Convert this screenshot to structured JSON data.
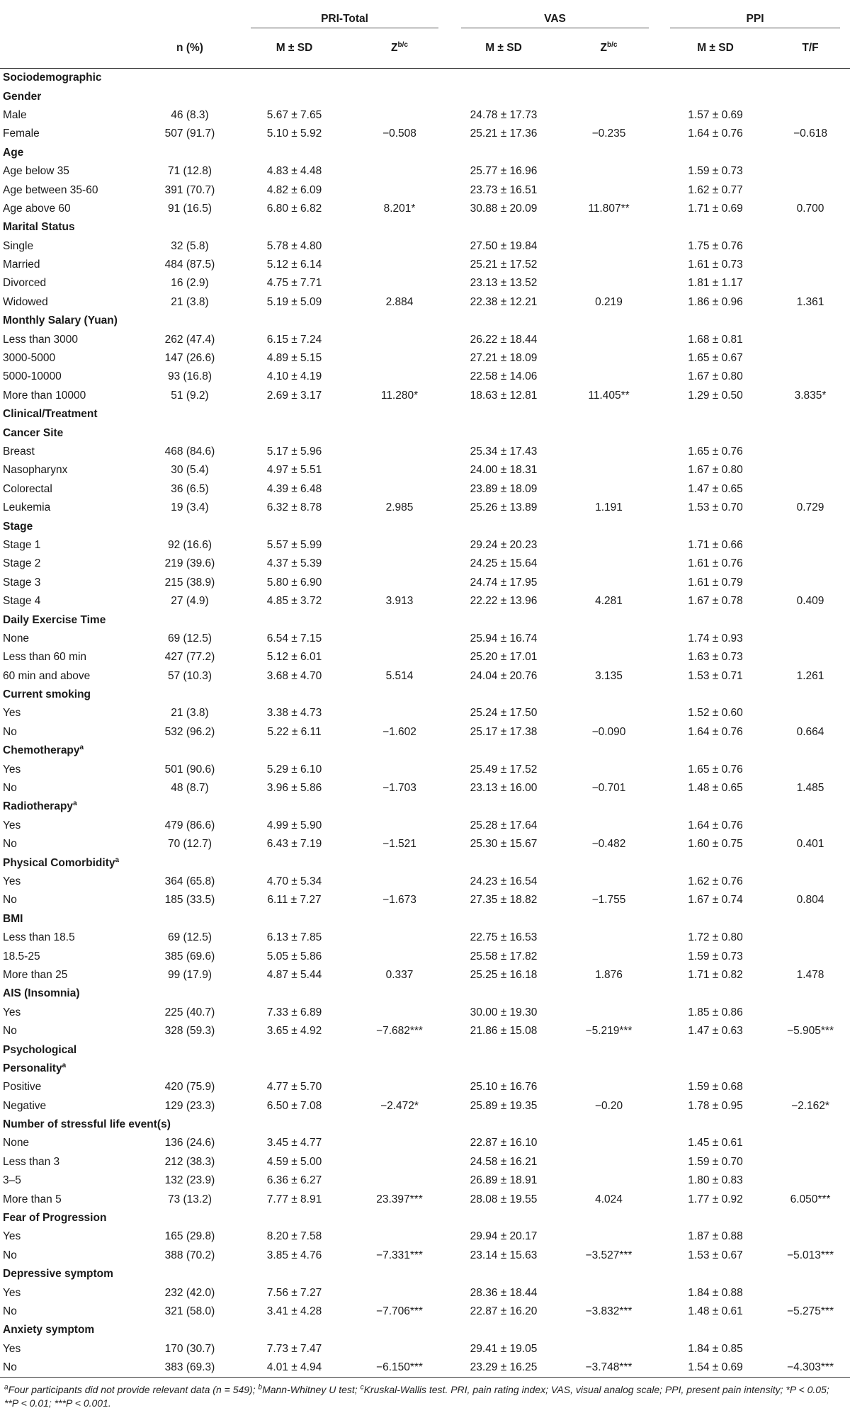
{
  "headers": {
    "groups": [
      "PRI-Total",
      "VAS",
      "PPI"
    ],
    "n_label": "n (%)",
    "ms_label": "M ± SD",
    "z_label": "Z",
    "z_sup": "b/c",
    "tf_label": "T/F"
  },
  "rows": [
    {
      "type": "section",
      "label": "Sociodemographic"
    },
    {
      "type": "group",
      "label": "Gender"
    },
    {
      "type": "data",
      "label": "Male",
      "n": "46 (8.3)",
      "pri": "5.67 ± 7.65",
      "pri_z": "",
      "vas": "24.78 ± 17.73",
      "vas_z": "",
      "ppi": "1.57 ± 0.69",
      "ppi_tf": ""
    },
    {
      "type": "data",
      "label": "Female",
      "n": "507 (91.7)",
      "pri": "5.10 ± 5.92",
      "pri_z": "−0.508",
      "vas": "25.21 ± 17.36",
      "vas_z": "−0.235",
      "ppi": "1.64 ± 0.76",
      "ppi_tf": "−0.618"
    },
    {
      "type": "group",
      "label": "Age"
    },
    {
      "type": "data",
      "label": "Age below 35",
      "n": "71 (12.8)",
      "pri": "4.83 ± 4.48",
      "pri_z": "",
      "vas": "25.77 ± 16.96",
      "vas_z": "",
      "ppi": "1.59 ± 0.73",
      "ppi_tf": ""
    },
    {
      "type": "data",
      "label": "Age between 35-60",
      "n": "391 (70.7)",
      "pri": "4.82 ± 6.09",
      "pri_z": "",
      "vas": "23.73 ± 16.51",
      "vas_z": "",
      "ppi": "1.62 ± 0.77",
      "ppi_tf": ""
    },
    {
      "type": "data",
      "label": "Age above 60",
      "n": "91 (16.5)",
      "pri": "6.80 ± 6.82",
      "pri_z": "8.201*",
      "vas": "30.88 ± 20.09",
      "vas_z": "11.807**",
      "ppi": "1.71 ± 0.69",
      "ppi_tf": "0.700"
    },
    {
      "type": "group",
      "label": "Marital Status"
    },
    {
      "type": "data",
      "label": "Single",
      "n": "32 (5.8)",
      "pri": "5.78 ± 4.80",
      "pri_z": "",
      "vas": "27.50 ± 19.84",
      "vas_z": "",
      "ppi": "1.75 ± 0.76",
      "ppi_tf": ""
    },
    {
      "type": "data",
      "label": "Married",
      "n": "484 (87.5)",
      "pri": "5.12 ± 6.14",
      "pri_z": "",
      "vas": "25.21 ± 17.52",
      "vas_z": "",
      "ppi": "1.61 ± 0.73",
      "ppi_tf": ""
    },
    {
      "type": "data",
      "label": "Divorced",
      "n": "16 (2.9)",
      "pri": "4.75 ± 7.71",
      "pri_z": "",
      "vas": "23.13 ± 13.52",
      "vas_z": "",
      "ppi": "1.81 ± 1.17",
      "ppi_tf": ""
    },
    {
      "type": "data",
      "label": "Widowed",
      "n": "21 (3.8)",
      "pri": "5.19 ± 5.09",
      "pri_z": "2.884",
      "vas": "22.38 ± 12.21",
      "vas_z": "0.219",
      "ppi": "1.86 ± 0.96",
      "ppi_tf": "1.361"
    },
    {
      "type": "group",
      "label": "Monthly Salary (Yuan)"
    },
    {
      "type": "data",
      "label": "Less than 3000",
      "n": "262 (47.4)",
      "pri": "6.15 ± 7.24",
      "pri_z": "",
      "vas": "26.22 ± 18.44",
      "vas_z": "",
      "ppi": "1.68 ± 0.81",
      "ppi_tf": ""
    },
    {
      "type": "data",
      "label": "3000-5000",
      "n": "147 (26.6)",
      "pri": "4.89 ± 5.15",
      "pri_z": "",
      "vas": "27.21 ± 18.09",
      "vas_z": "",
      "ppi": "1.65 ± 0.67",
      "ppi_tf": ""
    },
    {
      "type": "data",
      "label": "5000-10000",
      "n": "93 (16.8)",
      "pri": "4.10 ± 4.19",
      "pri_z": "",
      "vas": "22.58 ± 14.06",
      "vas_z": "",
      "ppi": "1.67 ± 0.80",
      "ppi_tf": ""
    },
    {
      "type": "data",
      "label": "More than 10000",
      "n": "51 (9.2)",
      "pri": "2.69 ± 3.17",
      "pri_z": "11.280*",
      "vas": "18.63 ± 12.81",
      "vas_z": "11.405**",
      "ppi": "1.29 ± 0.50",
      "ppi_tf": "3.835*"
    },
    {
      "type": "section",
      "label": "Clinical/Treatment"
    },
    {
      "type": "group",
      "label": "Cancer Site"
    },
    {
      "type": "data",
      "label": "Breast",
      "n": "468 (84.6)",
      "pri": "5.17 ± 5.96",
      "pri_z": "",
      "vas": "25.34 ± 17.43",
      "vas_z": "",
      "ppi": "1.65 ± 0.76",
      "ppi_tf": ""
    },
    {
      "type": "data",
      "label": "Nasopharynx",
      "n": "30 (5.4)",
      "pri": "4.97 ± 5.51",
      "pri_z": "",
      "vas": "24.00 ± 18.31",
      "vas_z": "",
      "ppi": "1.67 ± 0.80",
      "ppi_tf": ""
    },
    {
      "type": "data",
      "label": "Colorectal",
      "n": "36 (6.5)",
      "pri": "4.39 ± 6.48",
      "pri_z": "",
      "vas": "23.89 ± 18.09",
      "vas_z": "",
      "ppi": "1.47 ± 0.65",
      "ppi_tf": ""
    },
    {
      "type": "data",
      "label": "Leukemia",
      "n": "19 (3.4)",
      "pri": "6.32 ± 8.78",
      "pri_z": "2.985",
      "vas": "25.26 ± 13.89",
      "vas_z": "1.191",
      "ppi": "1.53 ± 0.70",
      "ppi_tf": "0.729"
    },
    {
      "type": "group",
      "label": "Stage"
    },
    {
      "type": "data",
      "label": "Stage 1",
      "n": "92 (16.6)",
      "pri": "5.57 ± 5.99",
      "pri_z": "",
      "vas": "29.24 ± 20.23",
      "vas_z": "",
      "ppi": "1.71 ± 0.66",
      "ppi_tf": ""
    },
    {
      "type": "data",
      "label": "Stage 2",
      "n": "219 (39.6)",
      "pri": "4.37 ± 5.39",
      "pri_z": "",
      "vas": "24.25 ± 15.64",
      "vas_z": "",
      "ppi": "1.61 ± 0.76",
      "ppi_tf": ""
    },
    {
      "type": "data",
      "label": "Stage 3",
      "n": "215 (38.9)",
      "pri": "5.80 ± 6.90",
      "pri_z": "",
      "vas": "24.74 ± 17.95",
      "vas_z": "",
      "ppi": "1.61 ± 0.79",
      "ppi_tf": ""
    },
    {
      "type": "data",
      "label": "Stage 4",
      "n": "27 (4.9)",
      "pri": "4.85 ± 3.72",
      "pri_z": "3.913",
      "vas": "22.22 ± 13.96",
      "vas_z": "4.281",
      "ppi": "1.67 ± 0.78",
      "ppi_tf": "0.409"
    },
    {
      "type": "group",
      "label": "Daily Exercise Time"
    },
    {
      "type": "data",
      "label": "None",
      "n": "69 (12.5)",
      "pri": "6.54 ± 7.15",
      "pri_z": "",
      "vas": "25.94 ± 16.74",
      "vas_z": "",
      "ppi": "1.74 ± 0.93",
      "ppi_tf": ""
    },
    {
      "type": "data",
      "label": "Less than 60 min",
      "n": "427 (77.2)",
      "pri": "5.12 ± 6.01",
      "pri_z": "",
      "vas": "25.20 ± 17.01",
      "vas_z": "",
      "ppi": "1.63 ± 0.73",
      "ppi_tf": ""
    },
    {
      "type": "data",
      "label": "60 min and above",
      "n": "57 (10.3)",
      "pri": "3.68 ± 4.70",
      "pri_z": "5.514",
      "vas": "24.04 ± 20.76",
      "vas_z": "3.135",
      "ppi": "1.53 ± 0.71",
      "ppi_tf": "1.261"
    },
    {
      "type": "group",
      "label": "Current smoking"
    },
    {
      "type": "data",
      "label": "Yes",
      "n": "21 (3.8)",
      "pri": "3.38 ± 4.73",
      "pri_z": "",
      "vas": "25.24 ± 17.50",
      "vas_z": "",
      "ppi": "1.52 ± 0.60",
      "ppi_tf": ""
    },
    {
      "type": "data",
      "label": "No",
      "n": "532 (96.2)",
      "pri": "5.22 ± 6.11",
      "pri_z": "−1.602",
      "vas": "25.17 ± 17.38",
      "vas_z": "−0.090",
      "ppi": "1.64 ± 0.76",
      "ppi_tf": "0.664"
    },
    {
      "type": "group",
      "label": "Chemotherapy",
      "sup": "a"
    },
    {
      "type": "data",
      "label": "Yes",
      "n": "501 (90.6)",
      "pri": "5.29 ± 6.10",
      "pri_z": "",
      "vas": "25.49 ± 17.52",
      "vas_z": "",
      "ppi": "1.65 ± 0.76",
      "ppi_tf": ""
    },
    {
      "type": "data",
      "label": "No",
      "n": "48 (8.7)",
      "pri": "3.96 ± 5.86",
      "pri_z": "−1.703",
      "vas": "23.13 ± 16.00",
      "vas_z": "−0.701",
      "ppi": "1.48 ± 0.65",
      "ppi_tf": "1.485"
    },
    {
      "type": "group",
      "label": "Radiotherapy",
      "sup": "a"
    },
    {
      "type": "data",
      "label": "Yes",
      "n": "479 (86.6)",
      "pri": "4.99 ± 5.90",
      "pri_z": "",
      "vas": "25.28 ± 17.64",
      "vas_z": "",
      "ppi": "1.64 ± 0.76",
      "ppi_tf": ""
    },
    {
      "type": "data",
      "label": "No",
      "n": "70 (12.7)",
      "pri": "6.43 ± 7.19",
      "pri_z": "−1.521",
      "vas": "25.30 ± 15.67",
      "vas_z": "−0.482",
      "ppi": "1.60 ± 0.75",
      "ppi_tf": "0.401"
    },
    {
      "type": "group",
      "label": "Physical Comorbidity",
      "sup": "a"
    },
    {
      "type": "data",
      "label": "Yes",
      "n": "364 (65.8)",
      "pri": "4.70 ± 5.34",
      "pri_z": "",
      "vas": "24.23 ± 16.54",
      "vas_z": "",
      "ppi": "1.62 ± 0.76",
      "ppi_tf": ""
    },
    {
      "type": "data",
      "label": "No",
      "n": "185 (33.5)",
      "pri": "6.11 ± 7.27",
      "pri_z": "−1.673",
      "vas": "27.35 ± 18.82",
      "vas_z": "−1.755",
      "ppi": "1.67 ± 0.74",
      "ppi_tf": "0.804"
    },
    {
      "type": "group",
      "label": "BMI"
    },
    {
      "type": "data",
      "label": "Less than 18.5",
      "n": "69 (12.5)",
      "pri": "6.13 ± 7.85",
      "pri_z": "",
      "vas": "22.75 ± 16.53",
      "vas_z": "",
      "ppi": "1.72 ± 0.80",
      "ppi_tf": ""
    },
    {
      "type": "data",
      "label": "18.5-25",
      "n": "385 (69.6)",
      "pri": "5.05 ± 5.86",
      "pri_z": "",
      "vas": "25.58 ± 17.82",
      "vas_z": "",
      "ppi": "1.59 ± 0.73",
      "ppi_tf": ""
    },
    {
      "type": "data",
      "label": "More than 25",
      "n": "99 (17.9)",
      "pri": "4.87 ± 5.44",
      "pri_z": "0.337",
      "vas": "25.25 ± 16.18",
      "vas_z": "1.876",
      "ppi": "1.71 ± 0.82",
      "ppi_tf": "1.478"
    },
    {
      "type": "group",
      "label": "AIS (Insomnia)"
    },
    {
      "type": "data",
      "label": "Yes",
      "n": "225 (40.7)",
      "pri": "7.33 ± 6.89",
      "pri_z": "",
      "vas": "30.00 ± 19.30",
      "vas_z": "",
      "ppi": "1.85 ± 0.86",
      "ppi_tf": ""
    },
    {
      "type": "data",
      "label": "No",
      "n": "328 (59.3)",
      "pri": "3.65 ± 4.92",
      "pri_z": "−7.682***",
      "vas": "21.86 ± 15.08",
      "vas_z": "−5.219***",
      "ppi": "1.47 ± 0.63",
      "ppi_tf": "−5.905***"
    },
    {
      "type": "section",
      "label": "Psychological"
    },
    {
      "type": "group",
      "label": "Personality",
      "sup": "a"
    },
    {
      "type": "data",
      "label": "Positive",
      "n": "420 (75.9)",
      "pri": "4.77 ± 5.70",
      "pri_z": "",
      "vas": "25.10 ± 16.76",
      "vas_z": "",
      "ppi": "1.59 ± 0.68",
      "ppi_tf": ""
    },
    {
      "type": "data",
      "label": "Negative",
      "n": "129 (23.3)",
      "pri": "6.50 ± 7.08",
      "pri_z": "−2.472*",
      "vas": "25.89 ± 19.35",
      "vas_z": "−0.20",
      "ppi": "1.78 ± 0.95",
      "ppi_tf": "−2.162*"
    },
    {
      "type": "group",
      "label": "Number of stressful life event(s)"
    },
    {
      "type": "data",
      "label": "None",
      "n": "136 (24.6)",
      "pri": "3.45 ± 4.77",
      "pri_z": "",
      "vas": "22.87 ± 16.10",
      "vas_z": "",
      "ppi": "1.45 ± 0.61",
      "ppi_tf": ""
    },
    {
      "type": "data",
      "label": "Less than 3",
      "n": "212 (38.3)",
      "pri": "4.59 ± 5.00",
      "pri_z": "",
      "vas": "24.58 ± 16.21",
      "vas_z": "",
      "ppi": "1.59 ± 0.70",
      "ppi_tf": ""
    },
    {
      "type": "data",
      "label": "3–5",
      "n": "132 (23.9)",
      "pri": "6.36 ± 6.27",
      "pri_z": "",
      "vas": "26.89 ± 18.91",
      "vas_z": "",
      "ppi": "1.80 ± 0.83",
      "ppi_tf": ""
    },
    {
      "type": "data",
      "label": "More than 5",
      "n": "73 (13.2)",
      "pri": "7.77 ± 8.91",
      "pri_z": "23.397***",
      "vas": "28.08 ± 19.55",
      "vas_z": "4.024",
      "ppi": "1.77 ± 0.92",
      "ppi_tf": "6.050***"
    },
    {
      "type": "group",
      "label": "Fear of Progression"
    },
    {
      "type": "data",
      "label": "Yes",
      "n": "165 (29.8)",
      "pri": "8.20 ± 7.58",
      "pri_z": "",
      "vas": "29.94 ± 20.17",
      "vas_z": "",
      "ppi": "1.87 ± 0.88",
      "ppi_tf": ""
    },
    {
      "type": "data",
      "label": "No",
      "n": "388 (70.2)",
      "pri": "3.85 ± 4.76",
      "pri_z": "−7.331***",
      "vas": "23.14 ± 15.63",
      "vas_z": "−3.527***",
      "ppi": "1.53 ± 0.67",
      "ppi_tf": "−5.013***"
    },
    {
      "type": "group",
      "label": "Depressive symptom"
    },
    {
      "type": "data",
      "label": "Yes",
      "n": "232 (42.0)",
      "pri": "7.56 ± 7.27",
      "pri_z": "",
      "vas": "28.36 ± 18.44",
      "vas_z": "",
      "ppi": "1.84 ± 0.88",
      "ppi_tf": ""
    },
    {
      "type": "data",
      "label": "No",
      "n": "321 (58.0)",
      "pri": "3.41 ± 4.28",
      "pri_z": "−7.706***",
      "vas": "22.87 ± 16.20",
      "vas_z": "−3.832***",
      "ppi": "1.48 ± 0.61",
      "ppi_tf": "−5.275***"
    },
    {
      "type": "group",
      "label": "Anxiety symptom"
    },
    {
      "type": "data",
      "label": "Yes",
      "n": "170 (30.7)",
      "pri": "7.73 ± 7.47",
      "pri_z": "",
      "vas": "29.41 ± 19.05",
      "vas_z": "",
      "ppi": "1.84 ± 0.85",
      "ppi_tf": ""
    },
    {
      "type": "data",
      "label": "No",
      "n": "383 (69.3)",
      "pri": "4.01 ± 4.94",
      "pri_z": "−6.150***",
      "vas": "23.29 ± 16.25",
      "vas_z": "−3.748***",
      "ppi": "1.54 ± 0.69",
      "ppi_tf": "−4.303***"
    }
  ],
  "footnote": {
    "items": [
      {
        "sup": "a",
        "text": "Four participants did not provide relevant data (n = 549); "
      },
      {
        "sup": "b",
        "text": "Mann-Whitney U test; "
      },
      {
        "sup": "c",
        "text": "Kruskal-Wallis test. PRI, pain rating index; VAS, visual analog scale; PPI, present pain intensity; *P < 0.05; **P < 0.01; ***P < 0.001."
      }
    ]
  }
}
